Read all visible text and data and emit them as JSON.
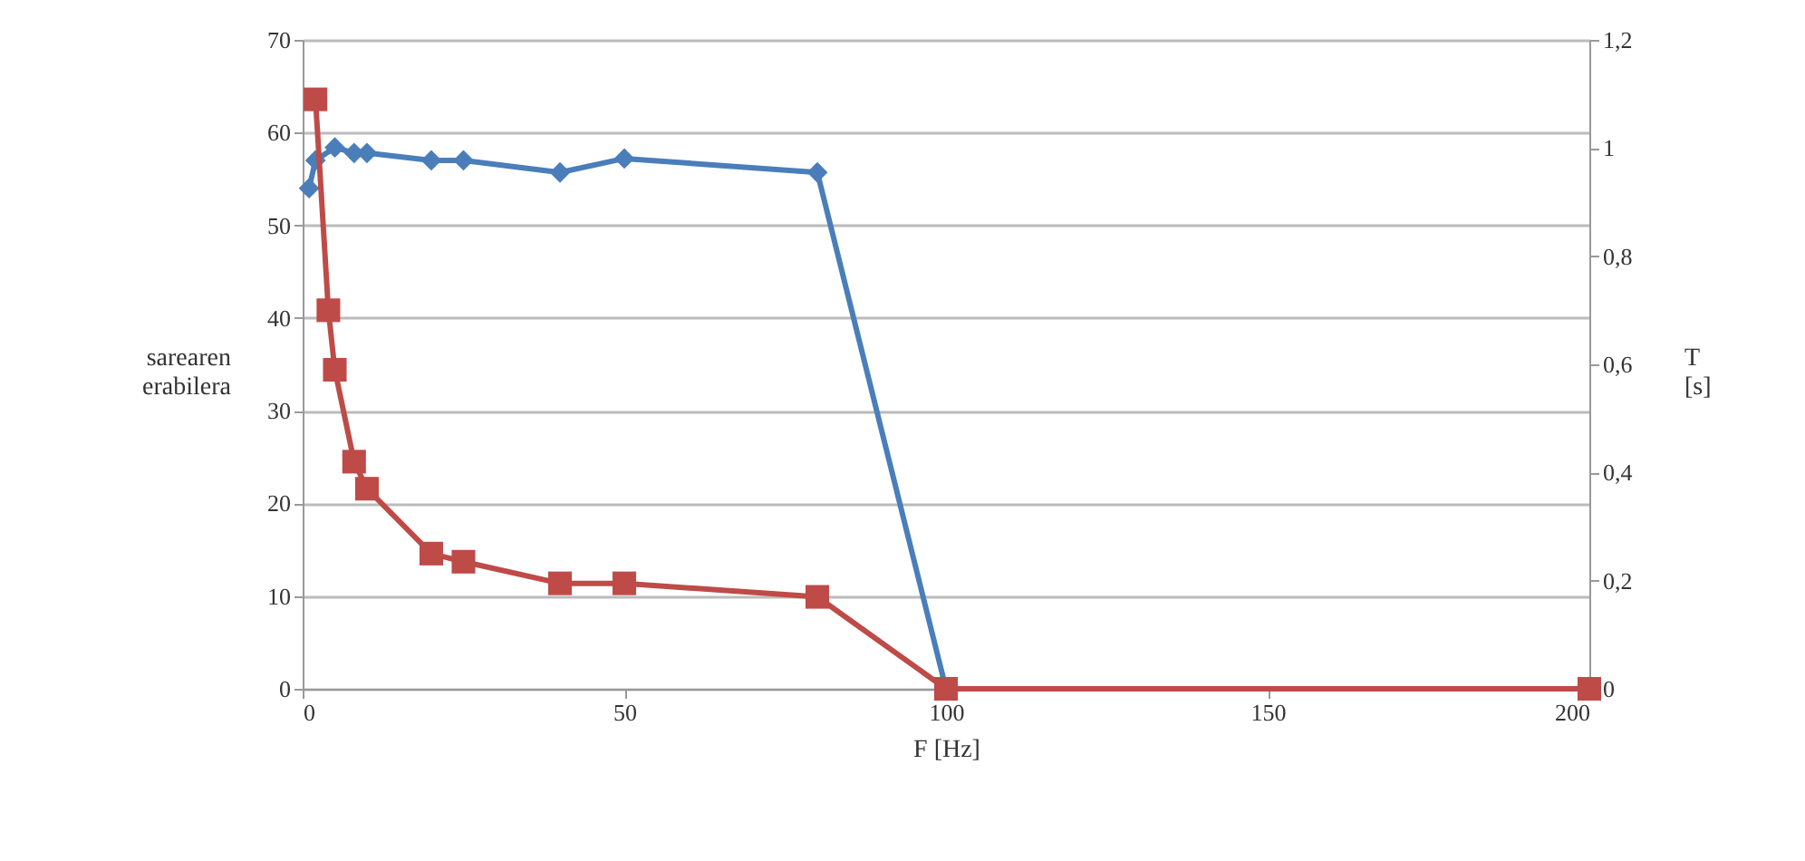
{
  "chart_data": {
    "type": "line",
    "xlabel": "F [Hz]",
    "ylabel": "sarearen erabilera",
    "y2label": "T [s]",
    "xlim": [
      0,
      200
    ],
    "xticks": [
      0,
      50,
      100,
      150,
      200
    ],
    "ylim": [
      0,
      70
    ],
    "yticks": [
      0,
      10,
      20,
      30,
      40,
      50,
      60,
      70
    ],
    "y2lim": [
      0,
      1.2
    ],
    "y2ticks": [
      0,
      {
        "value": 0.2,
        "label": "0,2"
      },
      {
        "value": 0.4,
        "label": "0,4"
      },
      {
        "value": 0.6,
        "label": "0,6"
      },
      {
        "value": 0.8,
        "label": "0,8"
      },
      1,
      {
        "value": 1.2,
        "label": "1,2"
      }
    ],
    "grid": "y",
    "line_style": "solid",
    "series": [
      {
        "color": "#4a7ebb",
        "marker": "diamond",
        "x": [
          1,
          2,
          5,
          8,
          10,
          20,
          25,
          40,
          50,
          80,
          100,
          200
        ],
        "values": [
          54,
          57,
          58.4,
          57.8,
          57.8,
          57,
          57,
          55.7,
          57.2,
          55.7,
          0,
          0
        ]
      },
      {
        "color": "#be4b48",
        "marker": "square",
        "axis": "y2",
        "x": [
          2,
          4,
          5,
          8,
          10,
          20,
          25,
          40,
          50,
          80,
          100,
          200
        ],
        "values": [
          1.09,
          0.7,
          0.59,
          0.42,
          0.37,
          0.25,
          0.235,
          0.195,
          0.195,
          0.17,
          0,
          0
        ]
      }
    ]
  }
}
